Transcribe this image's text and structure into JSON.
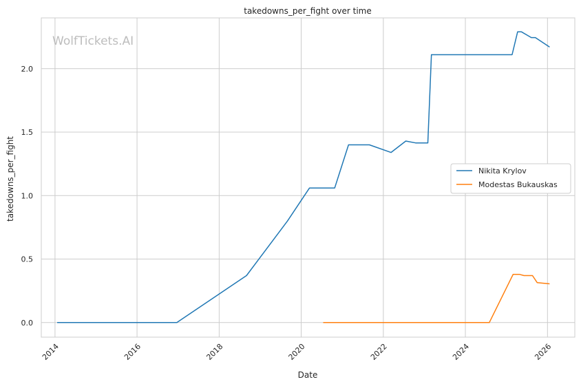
{
  "chart_data": {
    "type": "line",
    "title": "takedowns_per_fight over time",
    "xlabel": "Date",
    "ylabel": "takedowns_per_fight",
    "watermark": "WolfTickets.AI",
    "x_ticks": [
      "2014",
      "2016",
      "2018",
      "2020",
      "2022",
      "2024",
      "2026"
    ],
    "y_ticks": [
      "0.0",
      "0.5",
      "1.0",
      "1.5",
      "2.0"
    ],
    "xlim": [
      "2013-09-01",
      "2026-09-01"
    ],
    "ylim": [
      -0.115,
      2.4
    ],
    "grid": true,
    "legend_position": "center-right",
    "series": [
      {
        "name": "Nikita Krylov",
        "color": "#1f77b4",
        "points": [
          {
            "x": "2014-01-20",
            "y": 0.0
          },
          {
            "x": "2016-12-20",
            "y": 0.0
          },
          {
            "x": "2018-09-01",
            "y": 0.37
          },
          {
            "x": "2019-09-01",
            "y": 0.8
          },
          {
            "x": "2020-03-15",
            "y": 1.06
          },
          {
            "x": "2020-10-25",
            "y": 1.06
          },
          {
            "x": "2021-02-25",
            "y": 1.4
          },
          {
            "x": "2021-08-30",
            "y": 1.4
          },
          {
            "x": "2022-03-10",
            "y": 1.34
          },
          {
            "x": "2022-07-20",
            "y": 1.43
          },
          {
            "x": "2022-10-15",
            "y": 1.415
          },
          {
            "x": "2023-02-01",
            "y": 1.415
          },
          {
            "x": "2023-03-05",
            "y": 2.11
          },
          {
            "x": "2025-02-20",
            "y": 2.11
          },
          {
            "x": "2025-04-10",
            "y": 2.29
          },
          {
            "x": "2025-05-15",
            "y": 2.29
          },
          {
            "x": "2025-08-10",
            "y": 2.245
          },
          {
            "x": "2025-09-15",
            "y": 2.245
          },
          {
            "x": "2026-01-20",
            "y": 2.17
          }
        ]
      },
      {
        "name": "Modestas Bukauskas",
        "color": "#ff7f0e",
        "points": [
          {
            "x": "2020-07-15",
            "y": 0.0
          },
          {
            "x": "2024-08-01",
            "y": 0.0
          },
          {
            "x": "2025-03-01",
            "y": 0.38
          },
          {
            "x": "2025-04-25",
            "y": 0.38
          },
          {
            "x": "2025-06-05",
            "y": 0.37
          },
          {
            "x": "2025-08-20",
            "y": 0.37
          },
          {
            "x": "2025-10-01",
            "y": 0.315
          },
          {
            "x": "2026-01-20",
            "y": 0.305
          }
        ]
      }
    ]
  }
}
